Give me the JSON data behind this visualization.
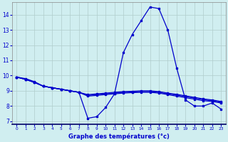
{
  "xlabel": "Graphe des températures (°c)",
  "hours": [
    0,
    1,
    2,
    3,
    4,
    5,
    6,
    7,
    8,
    9,
    10,
    11,
    12,
    13,
    14,
    15,
    16,
    17,
    18,
    19,
    20,
    21,
    22,
    23
  ],
  "line1": [
    9.9,
    9.8,
    9.6,
    9.3,
    9.2,
    9.1,
    9.0,
    8.9,
    7.2,
    7.3,
    7.9,
    8.8,
    11.5,
    12.7,
    13.6,
    14.5,
    14.4,
    13.0,
    10.5,
    8.4,
    8.0,
    8.0,
    8.2,
    7.8
  ],
  "line2": [
    9.9,
    9.75,
    9.55,
    9.3,
    9.2,
    9.1,
    9.0,
    8.9,
    8.65,
    8.7,
    8.75,
    8.8,
    8.85,
    8.88,
    8.9,
    8.9,
    8.85,
    8.75,
    8.65,
    8.55,
    8.45,
    8.35,
    8.3,
    8.2
  ],
  "line3": [
    9.9,
    9.75,
    9.55,
    9.3,
    9.2,
    9.1,
    9.0,
    8.9,
    8.7,
    8.75,
    8.8,
    8.85,
    8.9,
    8.92,
    8.95,
    8.95,
    8.9,
    8.8,
    8.72,
    8.62,
    8.52,
    8.42,
    8.35,
    8.25
  ],
  "line4": [
    9.9,
    9.75,
    9.55,
    9.3,
    9.2,
    9.1,
    9.0,
    8.9,
    8.75,
    8.8,
    8.85,
    8.9,
    8.95,
    8.97,
    9.0,
    9.0,
    8.95,
    8.85,
    8.77,
    8.67,
    8.57,
    8.47,
    8.4,
    8.3
  ],
  "line_color": "#0000cc",
  "bg_color": "#d0eef0",
  "grid_color": "#b0cccc",
  "ylim": [
    6.8,
    14.8
  ],
  "xlim": [
    -0.5,
    23.5
  ],
  "yticks": [
    7,
    8,
    9,
    10,
    11,
    12,
    13,
    14
  ],
  "xticks": [
    0,
    1,
    2,
    3,
    4,
    5,
    6,
    7,
    8,
    9,
    10,
    11,
    12,
    13,
    14,
    15,
    16,
    17,
    18,
    19,
    20,
    21,
    22,
    23
  ]
}
